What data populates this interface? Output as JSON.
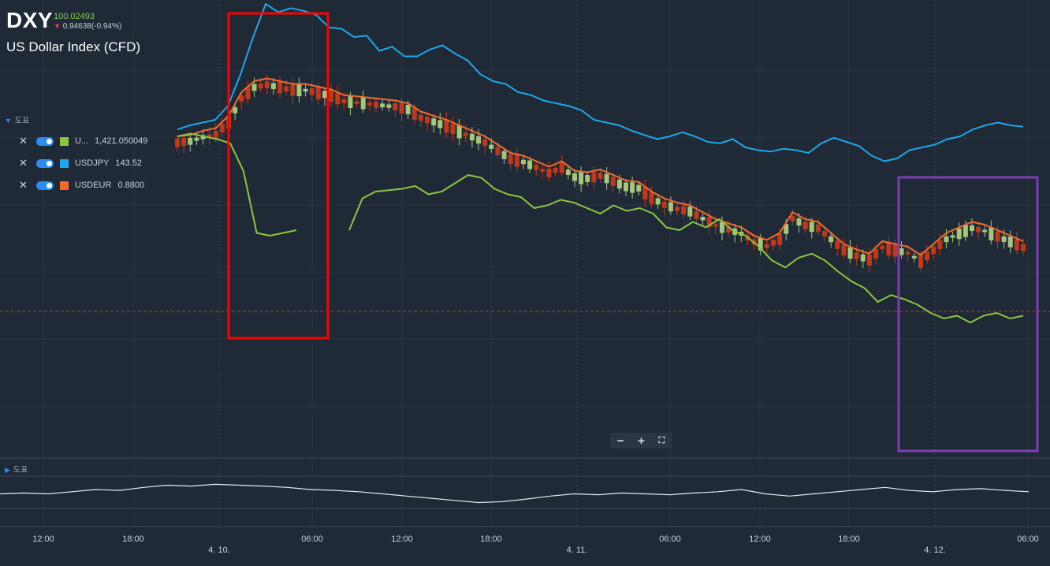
{
  "header": {
    "ticker": "DXY",
    "price": "100.02493",
    "change": "0.94638(-0.94%)",
    "name": "US Dollar Index (CFD)"
  },
  "indicator_panel_label": "도표",
  "lower_panel_label": "도표",
  "legend": [
    {
      "name": "U...",
      "value": "1,421.050049",
      "color": "#8cc63f"
    },
    {
      "name": "USDJPY",
      "value": "143.52",
      "color": "#1ea7e8"
    },
    {
      "name": "USDEUR",
      "value": "0.8800",
      "color": "#f26b2c"
    }
  ],
  "zoom": {
    "minus": "−",
    "plus": "+",
    "fit": "⛶"
  },
  "colors": {
    "background": "#1f2a36",
    "green": "#8cc63f",
    "blue": "#1ea7e8",
    "orange": "#f26b2c",
    "candle_up": "#a6c77a",
    "candle_down": "#c0391b",
    "red_box": "#ff0000",
    "purple_box": "#7b3fb5"
  },
  "chart_data": {
    "type": "line",
    "x_ticks": [
      "12:00",
      "18:00",
      "06:00",
      "12:00",
      "18:00",
      "06:00",
      "12:00",
      "18:00",
      "06:00"
    ],
    "date_labels": [
      "4. 10.",
      "4. 11.",
      "4. 12."
    ],
    "reference_level": "100.02493",
    "series": [
      {
        "name": "USDJPY",
        "color": "#1ea7e8",
        "values": [
          0.05,
          0.08,
          0.1,
          0.12,
          0.22,
          0.45,
          0.72,
          0.96,
          0.9,
          0.93,
          0.91,
          0.88,
          0.79,
          0.78,
          0.72,
          0.73,
          0.62,
          0.65,
          0.58,
          0.58,
          0.63,
          0.66,
          0.6,
          0.55,
          0.45,
          0.4,
          0.38,
          0.32,
          0.3,
          0.26,
          0.24,
          0.22,
          0.19,
          0.12,
          0.1,
          0.08,
          0.04,
          0.01,
          -0.02,
          0.0,
          0.03,
          0.0,
          -0.04,
          -0.05,
          -0.02,
          -0.08,
          -0.1,
          -0.11,
          -0.09,
          -0.1,
          -0.12,
          -0.05,
          -0.01,
          -0.04,
          -0.07,
          -0.14,
          -0.18,
          -0.16,
          -0.1,
          -0.08,
          -0.06,
          -0.02,
          0.0,
          0.05,
          0.08,
          0.1,
          0.08,
          0.07
        ]
      },
      {
        "name": "USDEUR",
        "color": "#f26b2c",
        "values": [
          0.0,
          0.01,
          0.04,
          0.06,
          0.15,
          0.32,
          0.4,
          0.42,
          0.4,
          0.38,
          0.38,
          0.36,
          0.34,
          0.3,
          0.29,
          0.28,
          0.27,
          0.26,
          0.24,
          0.18,
          0.15,
          0.12,
          0.08,
          0.04,
          0.0,
          -0.06,
          -0.12,
          -0.14,
          -0.18,
          -0.22,
          -0.18,
          -0.25,
          -0.26,
          -0.24,
          -0.28,
          -0.32,
          -0.33,
          -0.4,
          -0.45,
          -0.48,
          -0.5,
          -0.55,
          -0.6,
          -0.63,
          -0.66,
          -0.72,
          -0.75,
          -0.7,
          -0.55,
          -0.6,
          -0.62,
          -0.7,
          -0.78,
          -0.82,
          -0.85,
          -0.76,
          -0.78,
          -0.8,
          -0.86,
          -0.78,
          -0.7,
          -0.66,
          -0.62,
          -0.64,
          -0.68,
          -0.72,
          -0.76
        ]
      },
      {
        "name": "U...",
        "color": "#8cc63f",
        "values": [
          0.0,
          0.02,
          0.0,
          -0.02,
          -0.05,
          -0.25,
          -0.7,
          -0.72,
          -0.7,
          -0.68,
          null,
          null,
          null,
          -0.68,
          -0.45,
          -0.4,
          -0.39,
          -0.38,
          -0.36,
          -0.42,
          -0.4,
          -0.34,
          -0.28,
          -0.3,
          -0.38,
          -0.42,
          -0.44,
          -0.52,
          -0.5,
          -0.46,
          -0.48,
          -0.52,
          -0.56,
          -0.5,
          -0.54,
          -0.52,
          -0.56,
          -0.66,
          -0.68,
          -0.62,
          -0.66,
          -0.6,
          -0.68,
          -0.72,
          -0.8,
          -0.9,
          -0.95,
          -0.88,
          -0.85,
          -0.9,
          -0.98,
          -1.05,
          -1.1,
          -1.2,
          -1.15,
          -1.18,
          -1.22,
          -1.28,
          -1.32,
          -1.3,
          -1.35,
          -1.3,
          -1.28,
          -1.32,
          -1.3
        ]
      }
    ],
    "candles_note": "DXY candlesticks",
    "oscillator": [
      0.1,
      0.12,
      0.1,
      0.15,
      0.2,
      0.18,
      0.25,
      0.3,
      0.28,
      0.32,
      0.3,
      0.28,
      0.25,
      0.2,
      0.18,
      0.15,
      0.1,
      0.05,
      0.0,
      -0.05,
      -0.1,
      -0.08,
      -0.02,
      0.05,
      0.1,
      0.08,
      0.12,
      0.1,
      0.08,
      0.12,
      0.15,
      0.2,
      0.1,
      0.05,
      0.1,
      0.15,
      0.2,
      0.25,
      0.18,
      0.15,
      0.2,
      0.22,
      0.18,
      0.15
    ]
  }
}
